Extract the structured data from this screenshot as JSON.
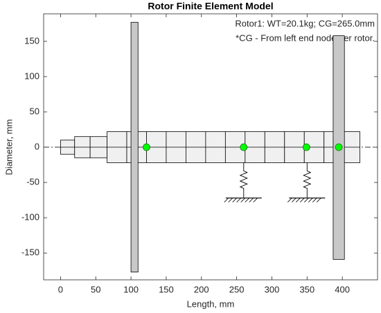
{
  "chart_data": {
    "type": "rotor",
    "title": "Rotor Finite Element Model",
    "annotations": [
      "Rotor1: WT=20.1kg; CG=265.0mm",
      "*CG - From left end node per rotor."
    ],
    "x_label": "Length, mm",
    "y_label": "Diameter, mm",
    "xlim": [
      -24,
      450
    ],
    "ylim": [
      -188,
      189
    ],
    "xticks": [
      0,
      50,
      100,
      150,
      200,
      250,
      300,
      350,
      400
    ],
    "yticks": [
      -150,
      -100,
      -50,
      0,
      50,
      100,
      150
    ],
    "shaft_nodes": [
      0,
      20,
      42,
      66,
      94,
      122,
      150,
      178,
      206,
      234,
      262,
      290,
      318,
      346,
      374,
      398,
      425
    ],
    "shaft_radii": [
      10,
      15,
      15,
      22,
      22,
      22,
      22,
      22,
      22,
      22,
      22,
      22,
      22,
      22,
      22,
      22
    ],
    "shaft_color": "#f0f0f0",
    "disks": [
      {
        "start": 100,
        "end": 110,
        "top": 177,
        "bottom": -177
      },
      {
        "start": 387,
        "end": 403,
        "top": 158,
        "bottom": -159
      }
    ],
    "disk_color": "#c8c8c8",
    "nodes_marked": [
      122,
      260,
      349,
      395
    ],
    "marker_color": "#00ff00",
    "bearings": [
      260,
      350
    ],
    "bearing_ground": -72
  }
}
